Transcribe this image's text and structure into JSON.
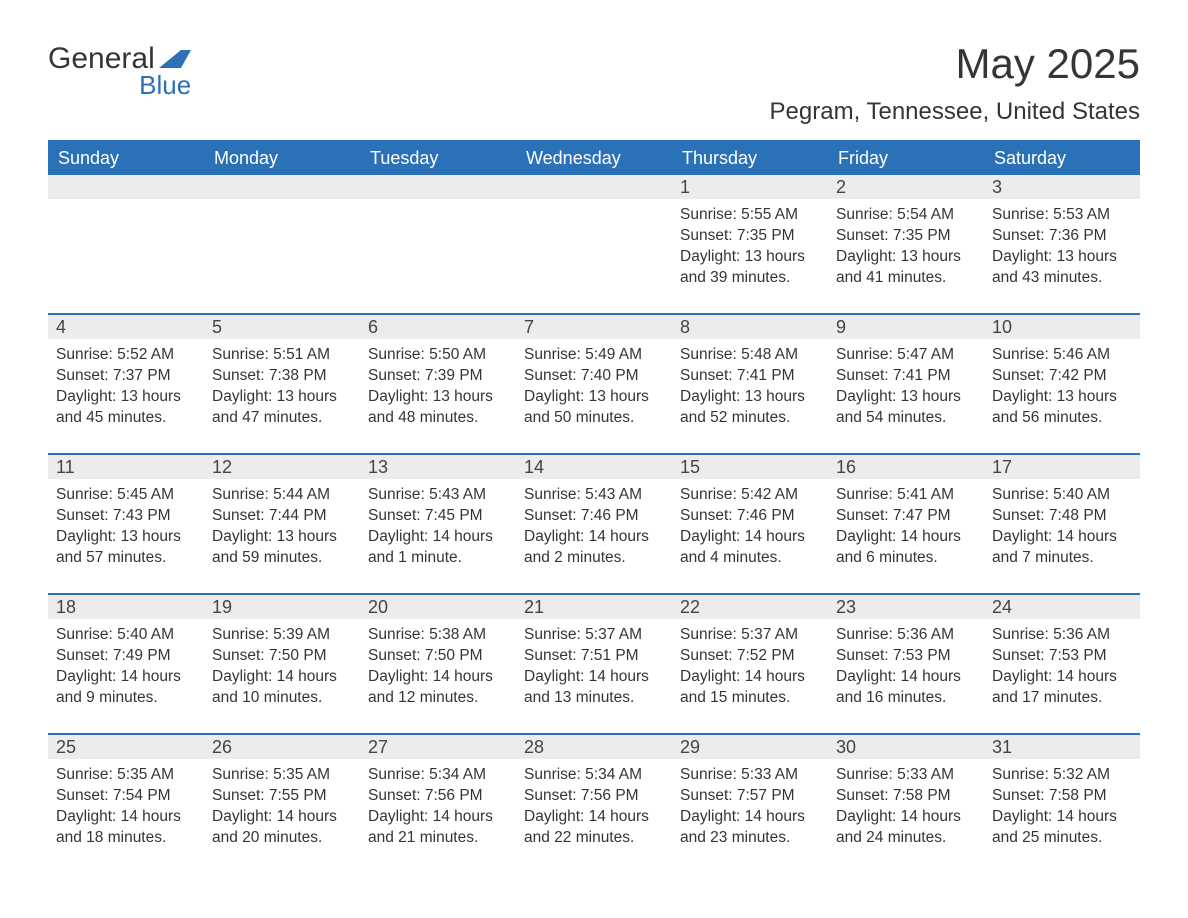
{
  "brand": {
    "general": "General",
    "blue": "Blue"
  },
  "header": {
    "title": "May 2025",
    "location": "Pegram, Tennessee, United States"
  },
  "colors": {
    "accent": "#2a71b8",
    "day_header_bg": "#ececec",
    "text": "#353535",
    "background": "#ffffff"
  },
  "calendar": {
    "days_of_week": [
      "Sunday",
      "Monday",
      "Tuesday",
      "Wednesday",
      "Thursday",
      "Friday",
      "Saturday"
    ],
    "weeks": [
      [
        null,
        null,
        null,
        null,
        {
          "n": "1",
          "sr": "Sunrise: 5:55 AM",
          "ss": "Sunset: 7:35 PM",
          "d1": "Daylight: 13 hours",
          "d2": "and 39 minutes."
        },
        {
          "n": "2",
          "sr": "Sunrise: 5:54 AM",
          "ss": "Sunset: 7:35 PM",
          "d1": "Daylight: 13 hours",
          "d2": "and 41 minutes."
        },
        {
          "n": "3",
          "sr": "Sunrise: 5:53 AM",
          "ss": "Sunset: 7:36 PM",
          "d1": "Daylight: 13 hours",
          "d2": "and 43 minutes."
        }
      ],
      [
        {
          "n": "4",
          "sr": "Sunrise: 5:52 AM",
          "ss": "Sunset: 7:37 PM",
          "d1": "Daylight: 13 hours",
          "d2": "and 45 minutes."
        },
        {
          "n": "5",
          "sr": "Sunrise: 5:51 AM",
          "ss": "Sunset: 7:38 PM",
          "d1": "Daylight: 13 hours",
          "d2": "and 47 minutes."
        },
        {
          "n": "6",
          "sr": "Sunrise: 5:50 AM",
          "ss": "Sunset: 7:39 PM",
          "d1": "Daylight: 13 hours",
          "d2": "and 48 minutes."
        },
        {
          "n": "7",
          "sr": "Sunrise: 5:49 AM",
          "ss": "Sunset: 7:40 PM",
          "d1": "Daylight: 13 hours",
          "d2": "and 50 minutes."
        },
        {
          "n": "8",
          "sr": "Sunrise: 5:48 AM",
          "ss": "Sunset: 7:41 PM",
          "d1": "Daylight: 13 hours",
          "d2": "and 52 minutes."
        },
        {
          "n": "9",
          "sr": "Sunrise: 5:47 AM",
          "ss": "Sunset: 7:41 PM",
          "d1": "Daylight: 13 hours",
          "d2": "and 54 minutes."
        },
        {
          "n": "10",
          "sr": "Sunrise: 5:46 AM",
          "ss": "Sunset: 7:42 PM",
          "d1": "Daylight: 13 hours",
          "d2": "and 56 minutes."
        }
      ],
      [
        {
          "n": "11",
          "sr": "Sunrise: 5:45 AM",
          "ss": "Sunset: 7:43 PM",
          "d1": "Daylight: 13 hours",
          "d2": "and 57 minutes."
        },
        {
          "n": "12",
          "sr": "Sunrise: 5:44 AM",
          "ss": "Sunset: 7:44 PM",
          "d1": "Daylight: 13 hours",
          "d2": "and 59 minutes."
        },
        {
          "n": "13",
          "sr": "Sunrise: 5:43 AM",
          "ss": "Sunset: 7:45 PM",
          "d1": "Daylight: 14 hours",
          "d2": "and 1 minute."
        },
        {
          "n": "14",
          "sr": "Sunrise: 5:43 AM",
          "ss": "Sunset: 7:46 PM",
          "d1": "Daylight: 14 hours",
          "d2": "and 2 minutes."
        },
        {
          "n": "15",
          "sr": "Sunrise: 5:42 AM",
          "ss": "Sunset: 7:46 PM",
          "d1": "Daylight: 14 hours",
          "d2": "and 4 minutes."
        },
        {
          "n": "16",
          "sr": "Sunrise: 5:41 AM",
          "ss": "Sunset: 7:47 PM",
          "d1": "Daylight: 14 hours",
          "d2": "and 6 minutes."
        },
        {
          "n": "17",
          "sr": "Sunrise: 5:40 AM",
          "ss": "Sunset: 7:48 PM",
          "d1": "Daylight: 14 hours",
          "d2": "and 7 minutes."
        }
      ],
      [
        {
          "n": "18",
          "sr": "Sunrise: 5:40 AM",
          "ss": "Sunset: 7:49 PM",
          "d1": "Daylight: 14 hours",
          "d2": "and 9 minutes."
        },
        {
          "n": "19",
          "sr": "Sunrise: 5:39 AM",
          "ss": "Sunset: 7:50 PM",
          "d1": "Daylight: 14 hours",
          "d2": "and 10 minutes."
        },
        {
          "n": "20",
          "sr": "Sunrise: 5:38 AM",
          "ss": "Sunset: 7:50 PM",
          "d1": "Daylight: 14 hours",
          "d2": "and 12 minutes."
        },
        {
          "n": "21",
          "sr": "Sunrise: 5:37 AM",
          "ss": "Sunset: 7:51 PM",
          "d1": "Daylight: 14 hours",
          "d2": "and 13 minutes."
        },
        {
          "n": "22",
          "sr": "Sunrise: 5:37 AM",
          "ss": "Sunset: 7:52 PM",
          "d1": "Daylight: 14 hours",
          "d2": "and 15 minutes."
        },
        {
          "n": "23",
          "sr": "Sunrise: 5:36 AM",
          "ss": "Sunset: 7:53 PM",
          "d1": "Daylight: 14 hours",
          "d2": "and 16 minutes."
        },
        {
          "n": "24",
          "sr": "Sunrise: 5:36 AM",
          "ss": "Sunset: 7:53 PM",
          "d1": "Daylight: 14 hours",
          "d2": "and 17 minutes."
        }
      ],
      [
        {
          "n": "25",
          "sr": "Sunrise: 5:35 AM",
          "ss": "Sunset: 7:54 PM",
          "d1": "Daylight: 14 hours",
          "d2": "and 18 minutes."
        },
        {
          "n": "26",
          "sr": "Sunrise: 5:35 AM",
          "ss": "Sunset: 7:55 PM",
          "d1": "Daylight: 14 hours",
          "d2": "and 20 minutes."
        },
        {
          "n": "27",
          "sr": "Sunrise: 5:34 AM",
          "ss": "Sunset: 7:56 PM",
          "d1": "Daylight: 14 hours",
          "d2": "and 21 minutes."
        },
        {
          "n": "28",
          "sr": "Sunrise: 5:34 AM",
          "ss": "Sunset: 7:56 PM",
          "d1": "Daylight: 14 hours",
          "d2": "and 22 minutes."
        },
        {
          "n": "29",
          "sr": "Sunrise: 5:33 AM",
          "ss": "Sunset: 7:57 PM",
          "d1": "Daylight: 14 hours",
          "d2": "and 23 minutes."
        },
        {
          "n": "30",
          "sr": "Sunrise: 5:33 AM",
          "ss": "Sunset: 7:58 PM",
          "d1": "Daylight: 14 hours",
          "d2": "and 24 minutes."
        },
        {
          "n": "31",
          "sr": "Sunrise: 5:32 AM",
          "ss": "Sunset: 7:58 PM",
          "d1": "Daylight: 14 hours",
          "d2": "and 25 minutes."
        }
      ]
    ]
  }
}
